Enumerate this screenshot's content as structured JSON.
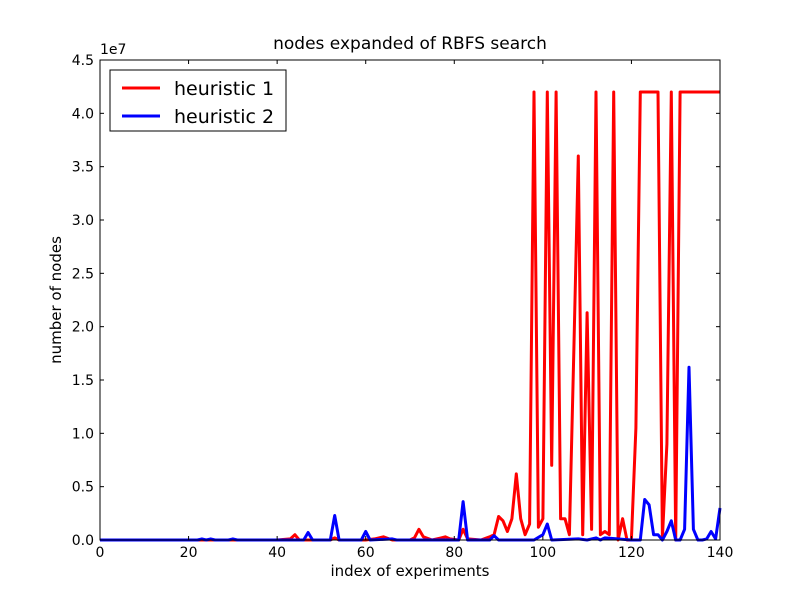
{
  "chart_data": {
    "type": "line",
    "title": "nodes expanded of RBFS search",
    "xlabel": "index of experiments",
    "ylabel": "number of nodes",
    "offset_text": "1e7",
    "xlim": [
      0,
      140
    ],
    "ylim": [
      0,
      4.5
    ],
    "y_multiplier": 10000000,
    "xticks": [
      0,
      20,
      40,
      60,
      80,
      100,
      120,
      140
    ],
    "xtick_labels": [
      "0",
      "20",
      "40",
      "60",
      "80",
      "100",
      "120",
      "140"
    ],
    "yticks": [
      0,
      0.5,
      1.0,
      1.5,
      2.0,
      2.5,
      3.0,
      3.5,
      4.0,
      4.5
    ],
    "ytick_labels": [
      "0.0",
      "0.5",
      "1.0",
      "1.5",
      "2.0",
      "2.5",
      "3.0",
      "3.5",
      "4.0",
      "4.5"
    ],
    "grid": false,
    "legend_placement": "upper-left",
    "series": [
      {
        "name": "heuristic 1",
        "color": "#ff0000",
        "x": [
          0,
          20,
          40,
          43,
          44,
          45,
          47,
          52,
          53,
          54,
          58,
          60,
          62,
          64,
          66,
          70,
          71,
          72,
          73,
          75,
          77,
          78,
          79,
          81,
          82,
          83,
          86,
          88,
          89,
          90,
          91,
          92,
          93,
          94,
          95,
          96,
          97,
          98,
          99,
          100,
          101,
          102,
          103,
          104,
          105,
          106,
          107,
          108,
          109,
          110,
          111,
          112,
          113,
          114,
          115,
          116,
          117,
          118,
          119,
          120,
          121,
          122,
          123,
          124,
          125,
          126,
          127,
          128,
          129,
          130,
          131,
          132,
          140
        ],
        "values": [
          0,
          0,
          0,
          0.01,
          0.05,
          0,
          0,
          0,
          0.02,
          0,
          0,
          0,
          0.01,
          0.03,
          0,
          0,
          0.02,
          0.1,
          0.03,
          0,
          0.02,
          0.03,
          0.01,
          0,
          0.1,
          0.01,
          0,
          0.03,
          0.05,
          0.22,
          0.18,
          0.08,
          0.2,
          0.62,
          0.2,
          0.05,
          0.15,
          4.2,
          0.12,
          0.2,
          4.2,
          0.7,
          4.2,
          0.2,
          0.2,
          0.05,
          1.8,
          3.6,
          0.05,
          2.13,
          0.1,
          4.2,
          0.05,
          0.08,
          0.05,
          4.2,
          0,
          0.2,
          0,
          0,
          1.05,
          4.2,
          4.2,
          4.2,
          4.2,
          4.2,
          0.02,
          0.9,
          4.2,
          0,
          4.2,
          4.2,
          4.2
        ]
      },
      {
        "name": "heuristic 2",
        "color": "#0000ff",
        "x": [
          0,
          20,
          22,
          23,
          24,
          25,
          26,
          29,
          30,
          31,
          40,
          46,
          47,
          48,
          52,
          53,
          54,
          59,
          60,
          61,
          66,
          67,
          81,
          82,
          83,
          88,
          89,
          90,
          98,
          100,
          101,
          102,
          108,
          110,
          112,
          113,
          114,
          120,
          122,
          123,
          124,
          125,
          126,
          127,
          128,
          129,
          130,
          131,
          132,
          133,
          134,
          135,
          136,
          137,
          138,
          139,
          140
        ],
        "values": [
          0,
          0,
          0,
          0.01,
          0,
          0.01,
          0,
          0,
          0.01,
          0,
          0,
          0,
          0.07,
          0,
          0,
          0.23,
          0,
          0,
          0.08,
          0,
          0.01,
          0,
          0,
          0.36,
          0,
          0,
          0.04,
          0,
          0,
          0.05,
          0.15,
          0,
          0.01,
          0,
          0.02,
          0,
          0.02,
          0,
          0,
          0.38,
          0.33,
          0.05,
          0.05,
          0,
          0.08,
          0.18,
          0,
          0,
          0.1,
          1.62,
          0.1,
          0,
          0,
          0.01,
          0.08,
          0.01,
          0.3
        ]
      }
    ]
  }
}
